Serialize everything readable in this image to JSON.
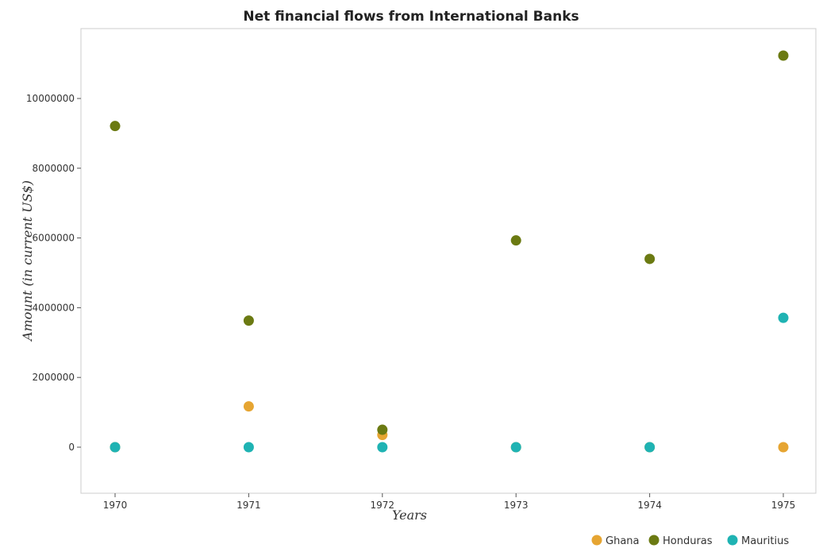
{
  "chart_data": {
    "type": "scatter",
    "title": "Net financial flows from International Banks",
    "xlabel": "Years",
    "ylabel": "Amount (in current US$)",
    "x": [
      "1970",
      "1971",
      "1972",
      "1973",
      "1974",
      "1975"
    ],
    "yticks": [
      0,
      2000000,
      4000000,
      6000000,
      8000000,
      10000000
    ],
    "ytick_labels": [
      "0",
      "2000000",
      "4000000",
      "6000000",
      "8000000",
      "10000000"
    ],
    "ylim": [
      -300000,
      11800000
    ],
    "grid": false,
    "legend_position": "bottom-right",
    "series": [
      {
        "name": "Ghana",
        "color": "#e6a532",
        "values": [
          0,
          1170000,
          350000,
          0,
          0,
          0
        ]
      },
      {
        "name": "Honduras",
        "color": "#6b7a12",
        "values": [
          9210000,
          3630000,
          500000,
          5930000,
          5400000,
          11230000
        ]
      },
      {
        "name": "Mauritius",
        "color": "#1fb3b3",
        "values": [
          0,
          0,
          0,
          0,
          0,
          3710000
        ]
      }
    ]
  }
}
